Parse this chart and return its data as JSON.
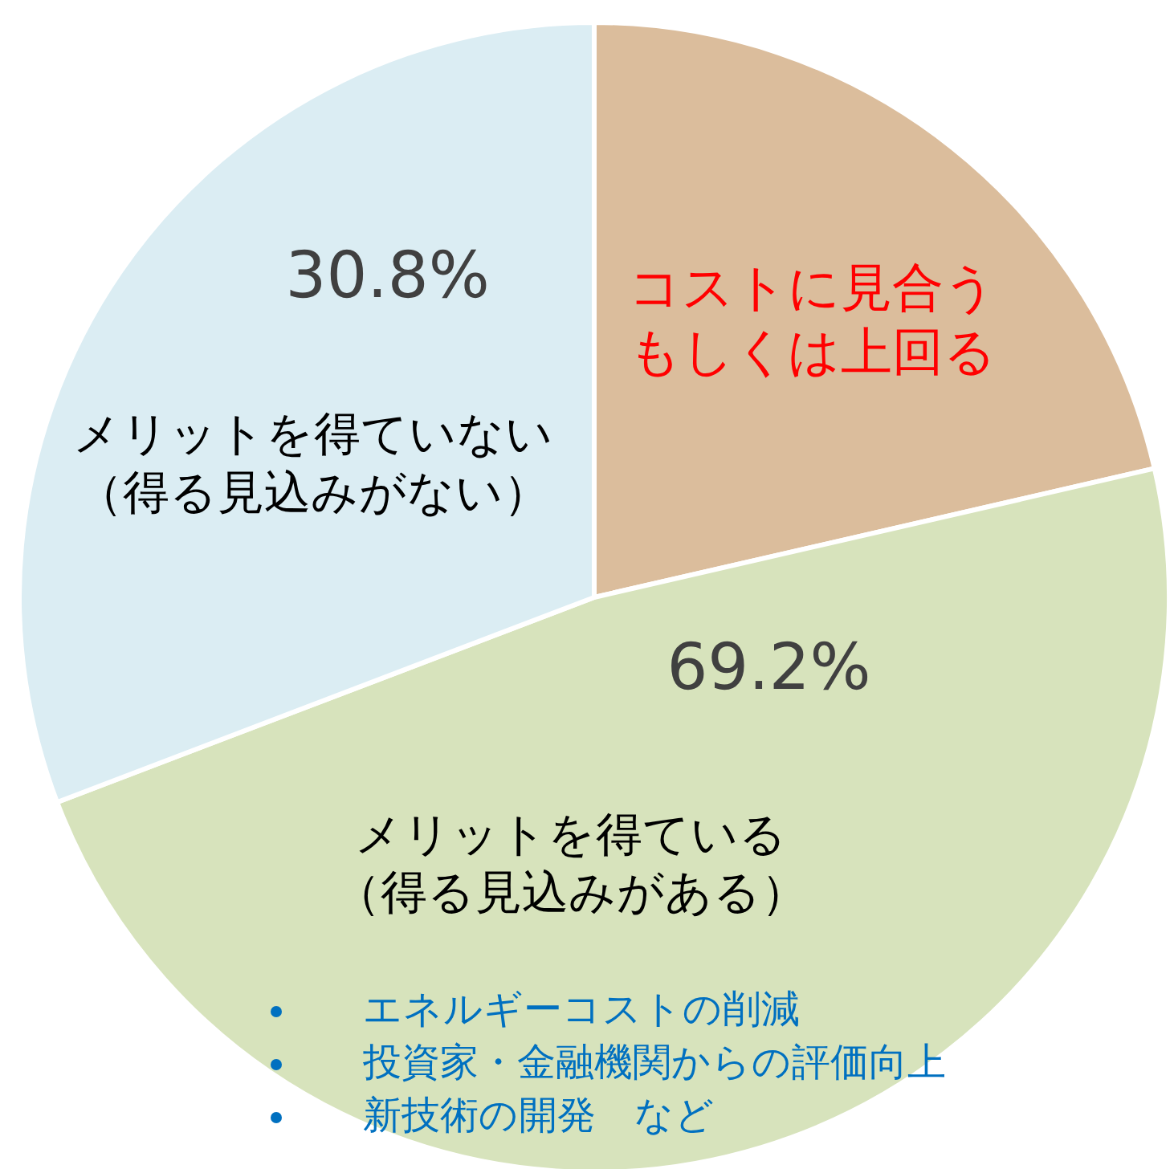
{
  "chart_data": {
    "type": "pie",
    "categories": [
      "コストに見合うもしくは上回る",
      "メリットを得ている（得る見込みがある）",
      "メリットを得ていない（得る見込みがない）"
    ],
    "values": [
      21.4,
      47.8,
      30.8
    ],
    "colors": [
      "#dbbd9c",
      "#d7e3bc",
      "#dbedf3"
    ],
    "value_labels": [
      null,
      null,
      "30.8%"
    ],
    "annotations": [
      "69.2%",
      "エネルギーコストの削減",
      "投資家・金融機関からの評価向上",
      "新技術の開発　など"
    ]
  }
}
